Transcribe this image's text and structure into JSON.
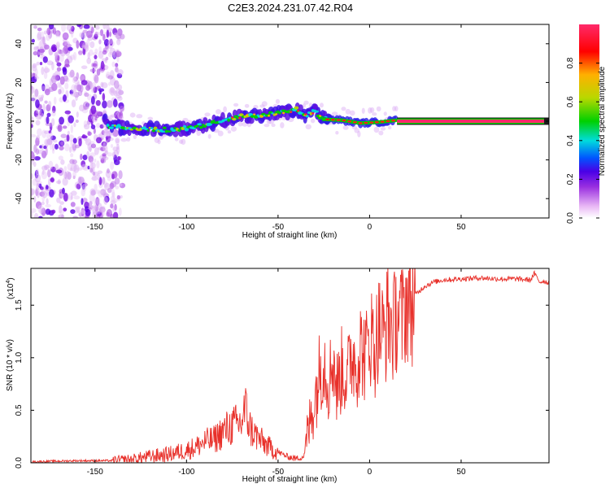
{
  "title": "C2E3.2024.231.07.42.R04",
  "colors": {
    "snr_line": "#e8302a",
    "axis": "#000000",
    "background": "#ffffff"
  },
  "chart_data": [
    {
      "type": "heatmap",
      "name": "spectrogram",
      "xlabel": "Height of straight line (km)",
      "ylabel": "Frequency (Hz)",
      "xlim": [
        -185,
        98
      ],
      "ylim": [
        -50,
        50
      ],
      "xticks": [
        -150,
        -100,
        -50,
        0,
        50
      ],
      "xtick_labels": [
        "-150",
        "-100",
        "-50",
        "0",
        "50"
      ],
      "yticks": [
        -40,
        -20,
        0,
        20,
        40
      ],
      "ytick_labels": [
        "-40",
        "-20",
        "0",
        "20",
        "40"
      ],
      "noise_region_x": [
        -185,
        -135
      ],
      "ridge": [
        {
          "x": -143,
          "f": -3.0
        },
        {
          "x": -130,
          "f": -3.5
        },
        {
          "x": -120,
          "f": -4.0
        },
        {
          "x": -110,
          "f": -4.5
        },
        {
          "x": -100,
          "f": -3.5
        },
        {
          "x": -90,
          "f": -2.0
        },
        {
          "x": -80,
          "f": 0.5
        },
        {
          "x": -70,
          "f": 2.5
        },
        {
          "x": -60,
          "f": 3.0
        },
        {
          "x": -50,
          "f": 4.0
        },
        {
          "x": -40,
          "f": 6.0
        },
        {
          "x": -35,
          "f": 3.0
        },
        {
          "x": -30,
          "f": 5.0
        },
        {
          "x": -25,
          "f": 1.0
        },
        {
          "x": -15,
          "f": 0.5
        },
        {
          "x": -5,
          "f": -1.0
        },
        {
          "x": 5,
          "f": -0.5
        },
        {
          "x": 15,
          "f": 0.5
        },
        {
          "x": 98,
          "f": 0.0
        }
      ],
      "steady_tone_start_x": 15,
      "colorbar": {
        "label": "Normalized spectral amplitude",
        "range": [
          0,
          1
        ],
        "ticks": [
          0.0,
          0.2,
          0.4,
          0.6,
          0.8
        ],
        "tick_labels": [
          "0.0",
          "0.2",
          "0.4",
          "0.6",
          "0.8"
        ],
        "colormap": [
          "#ffffff",
          "#e9b8f5",
          "#9a30e0",
          "#4a00e6",
          "#0055ff",
          "#00dcdc",
          "#00d000",
          "#b8d800",
          "#ffb000",
          "#ff0000",
          "#ff2a6a"
        ]
      }
    },
    {
      "type": "line",
      "name": "snr",
      "xlabel": "Height of straight line (km)",
      "ylabel": "SNR (10 * v/v)",
      "y_scale_label": "(x10",
      "y_scale_exponent": "4",
      "xlim": [
        -185,
        98
      ],
      "ylim": [
        0,
        1.85
      ],
      "xticks": [
        -150,
        -100,
        -50,
        0,
        50
      ],
      "xtick_labels": [
        "-150",
        "-100",
        "-50",
        "0",
        "50"
      ],
      "yticks": [
        0.0,
        0.5,
        1.0,
        1.5
      ],
      "ytick_labels": [
        "0.0",
        "0.5",
        "1.0",
        "1.5"
      ],
      "series": [
        {
          "name": "SNR",
          "x": [
            -185,
            -160,
            -140,
            -130,
            -120,
            -110,
            -100,
            -95,
            -90,
            -85,
            -80,
            -75,
            -70,
            -68,
            -65,
            -60,
            -55,
            -50,
            -45,
            -40,
            -36,
            -33,
            -30,
            -27,
            -25,
            -22,
            -20,
            -18,
            -15,
            -12,
            -10,
            -7,
            -5,
            -2,
            0,
            3,
            5,
            8,
            10,
            13,
            15,
            18,
            20,
            23,
            25,
            30,
            35,
            40,
            50,
            60,
            70,
            80,
            88,
            90,
            93,
            95,
            98
          ],
          "y": [
            0.01,
            0.02,
            0.02,
            0.03,
            0.06,
            0.08,
            0.12,
            0.15,
            0.2,
            0.22,
            0.3,
            0.35,
            0.38,
            0.52,
            0.32,
            0.22,
            0.15,
            0.1,
            0.06,
            0.04,
            0.06,
            0.35,
            0.6,
            0.9,
            1.0,
            0.75,
            1.05,
            0.7,
            0.9,
            0.8,
            1.05,
            0.95,
            1.1,
            1.0,
            1.25,
            1.1,
            1.3,
            1.2,
            1.4,
            1.25,
            1.45,
            1.35,
            1.55,
            1.5,
            1.6,
            1.68,
            1.72,
            1.74,
            1.75,
            1.76,
            1.75,
            1.75,
            1.74,
            1.8,
            1.72,
            1.73,
            1.71
          ]
        }
      ]
    }
  ]
}
